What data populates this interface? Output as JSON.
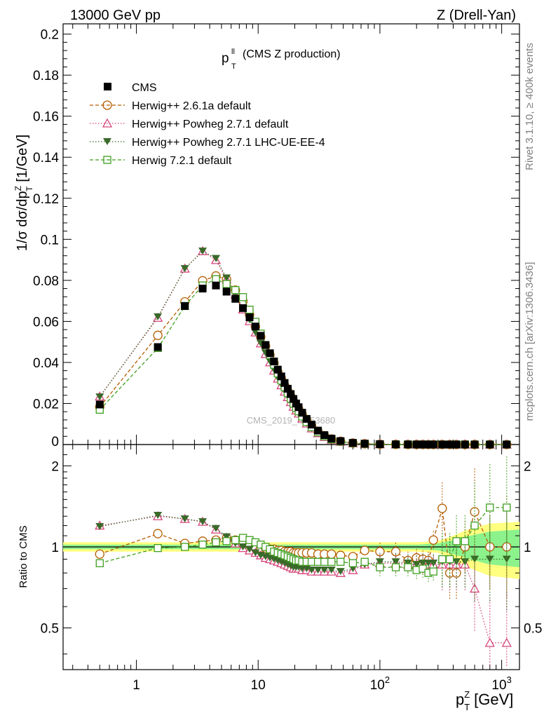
{
  "header": {
    "left": "13000 GeV pp",
    "right": "Z (Drell-Yan)",
    "plot_title_main": "p",
    "plot_title_sup": "ll",
    "plot_title_sub": "T",
    "plot_title_rest": "(CMS Z production)",
    "watermark": "CMS_2019_I1753680"
  },
  "side": {
    "rivet": "Rivet 3.1.10, ≥ 400k events",
    "mcplots": "mcplots.cern.ch [arXiv:1306.3436]"
  },
  "axes": {
    "main_ylabel": "1/σ dσ/dp",
    "main_ylabel_sup": "Z",
    "main_ylabel_sub": "T",
    "main_ylabel_unit": "[1/GeV]",
    "ratio_ylabel": "Ratio to CMS",
    "xlabel_main": "p",
    "xlabel_sup": "Z",
    "xlabel_sub": "T",
    "xlabel_unit": "[GeV]",
    "main_yticks": [
      "0",
      "0.02",
      "0.04",
      "0.06",
      "0.08",
      "0.1",
      "0.12",
      "0.14",
      "0.16",
      "0.18",
      "0.2"
    ],
    "ratio_yticks": [
      "0.5",
      "1",
      "2"
    ],
    "x_ticks": [
      "1",
      "10",
      "10^2",
      "10^3"
    ]
  },
  "legend": [
    {
      "label": "CMS",
      "color": "#000000"
    },
    {
      "label": "Herwig++ 2.6.1a default",
      "color": "#b35c00"
    },
    {
      "label": "Herwig++ Powheg 2.7.1 default",
      "color": "#d6457a"
    },
    {
      "label": "Herwig++ Powheg 2.7.1 LHC-UE-EE-4",
      "color": "#3a6a2a"
    },
    {
      "label": "Herwig 7.2.1 default",
      "color": "#3f9f1f"
    }
  ],
  "chart_data": {
    "type": "scatter",
    "x_scale": "log",
    "xlim": [
      0.25,
      1400
    ],
    "ylim": [
      0,
      0.205
    ],
    "ratio_ylim": [
      0.35,
      2.4
    ],
    "x": [
      0.5,
      1.5,
      2.5,
      3.5,
      4.5,
      5.5,
      6.5,
      7.5,
      8.5,
      9.5,
      10.5,
      11.5,
      12.5,
      13.5,
      14.5,
      15.5,
      16.5,
      17.5,
      18.5,
      19.5,
      20.5,
      21.5,
      23,
      25,
      27.5,
      31,
      35,
      40,
      47.5,
      60,
      75,
      100,
      135,
      170,
      200,
      225,
      250,
      275,
      325,
      375,
      425,
      500,
      600,
      800,
      1100
    ],
    "series": [
      {
        "name": "CMS",
        "values": [
          0.0195,
          0.0475,
          0.0675,
          0.076,
          0.0775,
          0.0745,
          0.071,
          0.0665,
          0.062,
          0.0575,
          0.053,
          0.0485,
          0.0445,
          0.0405,
          0.0365,
          0.0332,
          0.03,
          0.0272,
          0.0246,
          0.0222,
          0.02,
          0.0182,
          0.0155,
          0.0125,
          0.0097,
          0.0068,
          0.0046,
          0.0029,
          0.0017,
          0.0008,
          0.0004,
          0.00018,
          8e-05,
          4e-05,
          2e-05,
          2e-05,
          1e-05,
          1e-05,
          1e-05,
          1e-05,
          1e-05,
          1e-05,
          1e-05,
          1e-05,
          1e-05
        ]
      },
      {
        "name": "Herwig++ 2.6.1a default",
        "ratio": [
          0.94,
          1.12,
          1.03,
          1.05,
          1.06,
          1.08,
          1.06,
          1.05,
          1.02,
          1.0,
          0.99,
          0.99,
          0.98,
          0.98,
          0.97,
          0.97,
          0.96,
          0.96,
          0.96,
          0.95,
          0.95,
          0.95,
          0.95,
          0.95,
          0.95,
          0.94,
          0.94,
          0.94,
          0.93,
          0.92,
          0.97,
          0.96,
          0.96,
          0.89,
          0.91,
          0.9,
          0.89,
          1.06,
          1.39,
          0.8,
          0.8,
          1.0,
          1.35,
          1.0,
          1.0
        ]
      },
      {
        "name": "Herwig++ Powheg 2.7.1 default",
        "ratio": [
          1.2,
          1.3,
          1.27,
          1.24,
          1.16,
          1.08,
          1.03,
          0.99,
          0.97,
          0.95,
          0.93,
          0.91,
          0.9,
          0.89,
          0.88,
          0.87,
          0.86,
          0.85,
          0.84,
          0.83,
          0.83,
          0.83,
          0.82,
          0.82,
          0.81,
          0.81,
          0.81,
          0.81,
          0.8,
          0.82,
          0.86,
          0.87,
          0.87,
          0.86,
          0.86,
          0.86,
          0.86,
          0.86,
          0.86,
          0.86,
          0.86,
          0.86,
          0.7,
          0.44,
          0.44
        ]
      },
      {
        "name": "Herwig++ Powheg 2.7.1 LHC-UE-EE-4",
        "ratio": [
          1.19,
          1.31,
          1.27,
          1.24,
          1.17,
          1.09,
          1.03,
          1.0,
          0.98,
          0.95,
          0.93,
          0.92,
          0.91,
          0.9,
          0.89,
          0.88,
          0.87,
          0.86,
          0.85,
          0.84,
          0.84,
          0.84,
          0.83,
          0.83,
          0.82,
          0.82,
          0.82,
          0.82,
          0.81,
          0.83,
          0.86,
          0.88,
          0.88,
          0.87,
          0.86,
          0.87,
          0.87,
          0.87,
          0.88,
          0.88,
          0.88,
          0.88,
          0.9,
          0.9,
          0.9
        ]
      },
      {
        "name": "Herwig 7.2.1 default",
        "ratio": [
          0.87,
          0.99,
          1.0,
          1.02,
          1.04,
          1.05,
          1.06,
          1.08,
          1.06,
          1.04,
          1.02,
          1.0,
          0.98,
          0.96,
          0.95,
          0.94,
          0.93,
          0.92,
          0.91,
          0.9,
          0.89,
          0.89,
          0.88,
          0.88,
          0.88,
          0.88,
          0.88,
          0.88,
          0.88,
          0.87,
          0.88,
          0.84,
          0.84,
          0.84,
          0.82,
          0.83,
          0.8,
          0.81,
          0.9,
          0.9,
          1.05,
          1.05,
          1.2,
          1.4,
          1.4
        ]
      }
    ]
  }
}
